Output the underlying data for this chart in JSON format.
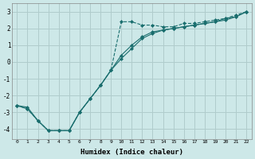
{
  "xlabel": "Humidex (Indice chaleur)",
  "background_color": "#cde8e8",
  "grid_color": "#b0cccc",
  "line_color": "#1a6e6e",
  "x_ticks": [
    0,
    1,
    2,
    3,
    4,
    5,
    6,
    7,
    8,
    9,
    10,
    11,
    12,
    13,
    14,
    15,
    16,
    17,
    18,
    19,
    20,
    21,
    22
  ],
  "y_ticks": [
    -4,
    -3,
    -2,
    -1,
    0,
    1,
    2,
    3
  ],
  "ylim": [
    -4.6,
    3.5
  ],
  "xlim": [
    -0.5,
    22.5
  ],
  "line1_dashed": {
    "x": [
      0,
      1,
      2,
      3,
      4,
      5,
      6,
      7,
      8,
      9,
      10,
      11,
      12,
      13,
      14,
      15,
      16,
      17,
      18,
      19,
      20,
      21,
      22
    ],
    "y": [
      -2.6,
      -2.8,
      -3.5,
      -4.1,
      -4.1,
      -4.1,
      -3.0,
      -2.2,
      -1.4,
      -0.5,
      2.4,
      2.4,
      2.2,
      2.2,
      2.1,
      2.1,
      2.3,
      2.3,
      2.4,
      2.5,
      2.6,
      2.8,
      3.0
    ]
  },
  "line2_solid": {
    "x": [
      0,
      1,
      2,
      3,
      4,
      5,
      6,
      7,
      8,
      9,
      10,
      11,
      12,
      13,
      14,
      15,
      16,
      17,
      18,
      19,
      20,
      21,
      22
    ],
    "y": [
      -2.6,
      -2.7,
      -3.5,
      -4.1,
      -4.1,
      -4.1,
      -3.0,
      -2.2,
      -1.4,
      -0.5,
      0.4,
      1.0,
      1.5,
      1.8,
      1.9,
      2.0,
      2.1,
      2.2,
      2.3,
      2.4,
      2.6,
      2.7,
      3.0
    ]
  },
  "line3_solid": {
    "x": [
      0,
      1,
      2,
      3,
      4,
      5,
      6,
      7,
      8,
      9,
      10,
      11,
      12,
      13,
      14,
      15,
      16,
      17,
      18,
      19,
      20,
      21,
      22
    ],
    "y": [
      -2.6,
      -2.8,
      -3.5,
      -4.1,
      -4.1,
      -4.1,
      -3.0,
      -2.2,
      -1.4,
      -0.5,
      0.2,
      0.8,
      1.4,
      1.7,
      1.9,
      2.0,
      2.1,
      2.2,
      2.3,
      2.4,
      2.5,
      2.7,
      3.0
    ]
  }
}
